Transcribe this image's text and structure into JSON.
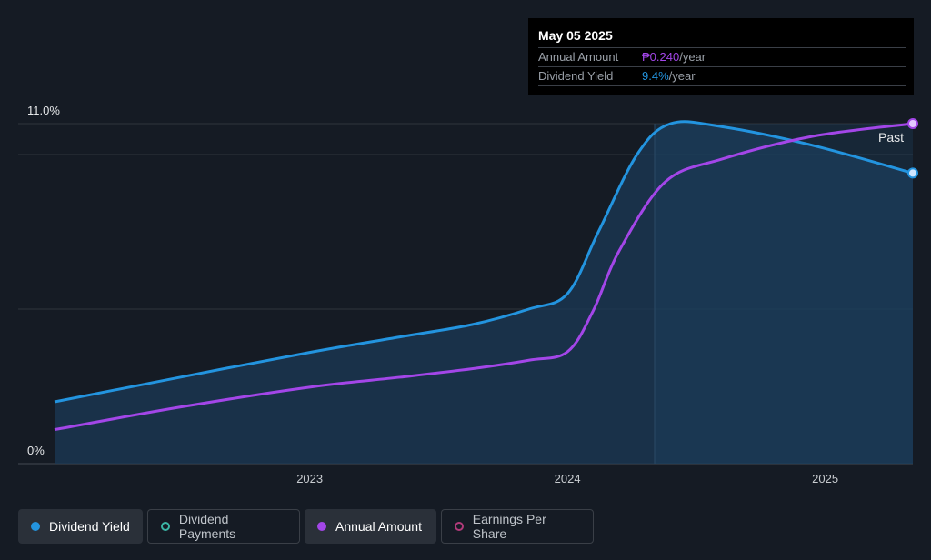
{
  "chart_data": {
    "type": "line",
    "y_axis": {
      "labels": [
        "11.0%",
        "0%"
      ],
      "ylim": [
        0,
        11
      ]
    },
    "x_axis": {
      "ticks": [
        "2023",
        "2024",
        "2025"
      ],
      "xlim": [
        2022.01,
        2025.34
      ]
    },
    "series": [
      {
        "name": "Dividend Yield",
        "unit": "%",
        "color": "#2394df",
        "points": [
          [
            2022.01,
            2.0
          ],
          [
            2022.5,
            2.8
          ],
          [
            2023.0,
            3.6
          ],
          [
            2023.35,
            4.1
          ],
          [
            2023.63,
            4.5
          ],
          [
            2023.85,
            5.0
          ],
          [
            2024.0,
            5.5
          ],
          [
            2024.12,
            7.5
          ],
          [
            2024.27,
            10.0
          ],
          [
            2024.4,
            11.0
          ],
          [
            2024.6,
            10.9
          ],
          [
            2024.95,
            10.3
          ],
          [
            2025.34,
            9.4
          ]
        ]
      },
      {
        "name": "Annual Amount",
        "unit": "PHP",
        "color": "#a346e8",
        "points": [
          [
            2022.01,
            0.024
          ],
          [
            2022.5,
            0.04
          ],
          [
            2023.0,
            0.054
          ],
          [
            2023.35,
            0.061
          ],
          [
            2023.63,
            0.067
          ],
          [
            2023.85,
            0.073
          ],
          [
            2024.0,
            0.079
          ],
          [
            2024.1,
            0.108
          ],
          [
            2024.2,
            0.15
          ],
          [
            2024.38,
            0.199
          ],
          [
            2024.6,
            0.215
          ],
          [
            2024.95,
            0.231
          ],
          [
            2025.34,
            0.24
          ]
        ],
        "ylim": [
          0,
          0.24
        ]
      }
    ],
    "annotation": "Past"
  },
  "tooltip": {
    "date": "May 05 2025",
    "rows": [
      {
        "label": "Annual Amount",
        "value": "₱0.240",
        "suffix": "/year",
        "color": "#a346e8"
      },
      {
        "label": "Dividend Yield",
        "value": "9.4%",
        "suffix": "/year",
        "color": "#2394df"
      }
    ]
  },
  "legend": [
    {
      "label": "Dividend Yield",
      "active": true,
      "color": "#2394df"
    },
    {
      "label": "Dividend Payments",
      "active": false,
      "color": "#3bb6a6"
    },
    {
      "label": "Annual Amount",
      "active": true,
      "color": "#a346e8"
    },
    {
      "label": "Earnings Per Share",
      "active": false,
      "color": "#b03a7a"
    }
  ]
}
